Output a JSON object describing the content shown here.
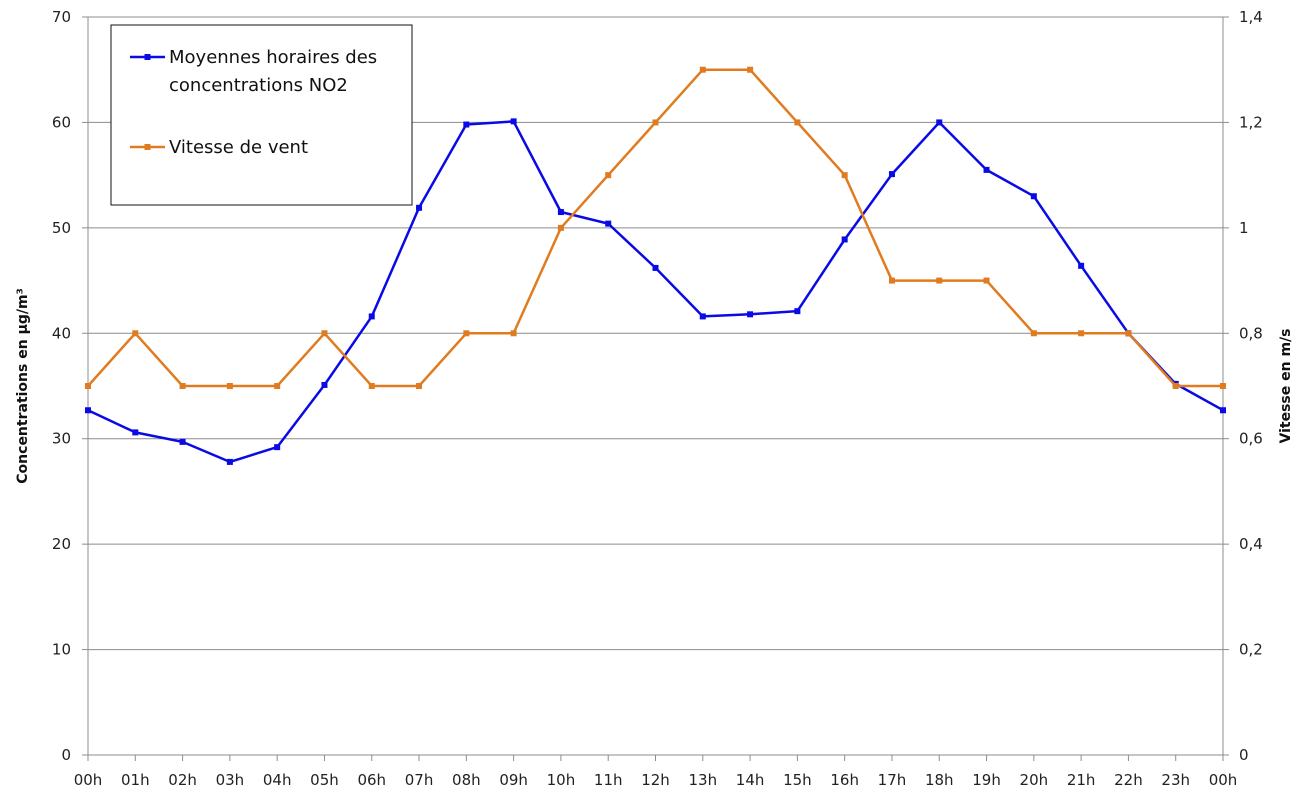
{
  "chart_data": {
    "type": "line",
    "categories": [
      "00h",
      "01h",
      "02h",
      "03h",
      "04h",
      "05h",
      "06h",
      "07h",
      "08h",
      "09h",
      "10h",
      "11h",
      "12h",
      "13h",
      "14h",
      "15h",
      "16h",
      "17h",
      "18h",
      "19h",
      "20h",
      "21h",
      "22h",
      "23h",
      "00h"
    ],
    "series": [
      {
        "name": "Moyennes horaires des concentrations NO2",
        "axis": "left",
        "color": "#0a0ae6",
        "values": [
          32.7,
          30.6,
          29.7,
          27.8,
          29.2,
          35.1,
          41.6,
          51.9,
          59.8,
          60.1,
          51.5,
          50.4,
          46.2,
          41.6,
          41.8,
          42.1,
          48.9,
          55.1,
          60.0,
          55.5,
          53.0,
          46.4,
          40.0,
          35.2,
          32.7
        ]
      },
      {
        "name": "Vitesse de vent",
        "axis": "right",
        "color": "#e07b1f",
        "values": [
          0.7,
          0.8,
          0.7,
          0.7,
          0.7,
          0.8,
          0.7,
          0.7,
          0.8,
          0.8,
          1.0,
          1.1,
          1.2,
          1.3,
          1.3,
          1.2,
          1.1,
          0.9,
          0.9,
          0.9,
          0.8,
          0.8,
          0.8,
          0.7,
          0.7
        ]
      }
    ],
    "ylabel": "Concentrations en µg/m³",
    "y2label": "Vitesse en m/s",
    "ylim": [
      0,
      70
    ],
    "y2lim": [
      0,
      1.4
    ],
    "yticks": [
      "0",
      "10",
      "20",
      "30",
      "40",
      "50",
      "60",
      "70"
    ],
    "y2ticks": [
      "0",
      "0,2",
      "0,4",
      "0,6",
      "0,8",
      "1",
      "1,2",
      "1,4"
    ],
    "grid": true,
    "legend_position": "top-left"
  }
}
